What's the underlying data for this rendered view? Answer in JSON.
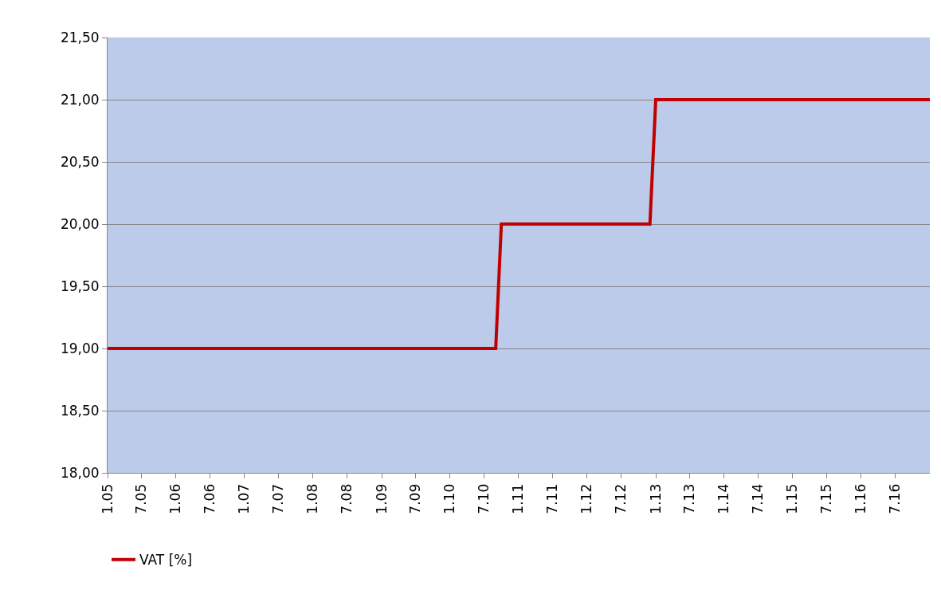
{
  "chart_data": {
    "type": "line",
    "series": [
      {
        "name": "VAT [%]",
        "color": "#c00000",
        "x": [
          "2005-01",
          "2010-09",
          "2010-10",
          "2012-12",
          "2013-01",
          "2017-01"
        ],
        "values": [
          19,
          19,
          20,
          20,
          21,
          21
        ]
      }
    ],
    "xlim": [
      "2005-01",
      "2017-01"
    ],
    "xticks": [
      {
        "value": "2005-01",
        "label": "1.05"
      },
      {
        "value": "2005-07",
        "label": "7.05"
      },
      {
        "value": "2006-01",
        "label": "1.06"
      },
      {
        "value": "2006-07",
        "label": "7.06"
      },
      {
        "value": "2007-01",
        "label": "1.07"
      },
      {
        "value": "2007-07",
        "label": "7.07"
      },
      {
        "value": "2008-01",
        "label": "1.08"
      },
      {
        "value": "2008-07",
        "label": "7.08"
      },
      {
        "value": "2009-01",
        "label": "1.09"
      },
      {
        "value": "2009-07",
        "label": "7.09"
      },
      {
        "value": "2010-01",
        "label": "1.10"
      },
      {
        "value": "2010-07",
        "label": "7.10"
      },
      {
        "value": "2011-01",
        "label": "1.11"
      },
      {
        "value": "2011-07",
        "label": "7.11"
      },
      {
        "value": "2012-01",
        "label": "1.12"
      },
      {
        "value": "2012-07",
        "label": "7.12"
      },
      {
        "value": "2013-01",
        "label": "1.13"
      },
      {
        "value": "2013-07",
        "label": "7.13"
      },
      {
        "value": "2014-01",
        "label": "1.14"
      },
      {
        "value": "2014-07",
        "label": "7.14"
      },
      {
        "value": "2015-01",
        "label": "1.15"
      },
      {
        "value": "2015-07",
        "label": "7.15"
      },
      {
        "value": "2016-01",
        "label": "1.16"
      },
      {
        "value": "2016-07",
        "label": "7.16"
      }
    ],
    "ylim": [
      18,
      21.5
    ],
    "yticks": [
      {
        "value": 18,
        "label": "18,00"
      },
      {
        "value": 18.5,
        "label": "18,50"
      },
      {
        "value": 19,
        "label": "19,00"
      },
      {
        "value": 19.5,
        "label": "19,50"
      },
      {
        "value": 20,
        "label": "20,00"
      },
      {
        "value": 20.5,
        "label": "20,50"
      },
      {
        "value": 21,
        "label": "21,00"
      },
      {
        "value": 21.5,
        "label": "21,50"
      }
    ],
    "grid": "y",
    "legend": "bottom left",
    "line_style": "solid"
  }
}
